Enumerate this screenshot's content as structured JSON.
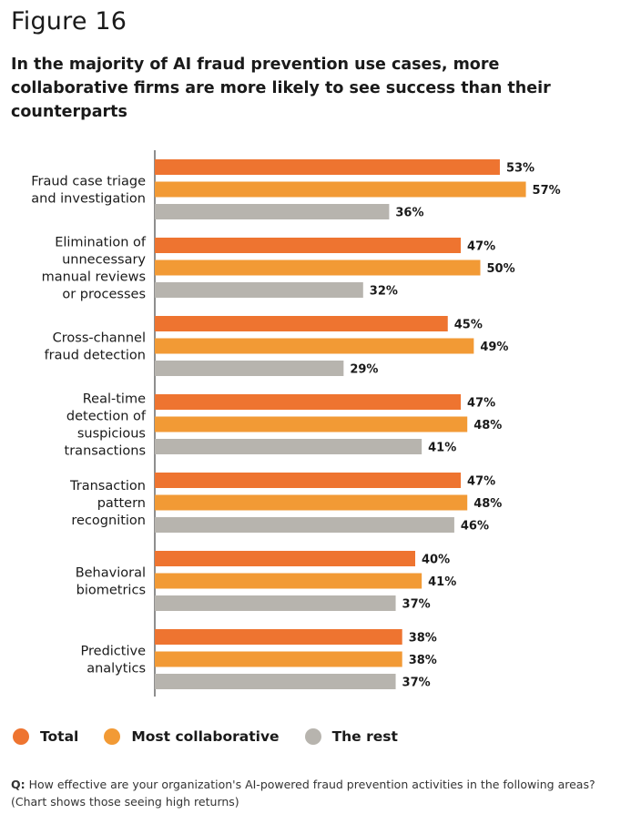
{
  "figure_label": "Figure 16",
  "headline": "In the majority of AI fraud prevention use cases, more collaborative firms are more likely to see success than their counterparts",
  "question_prefix": "Q:",
  "question_text": "How effective are your organization's AI-powered fraud prevention activities in the following areas? (Chart shows those seeing high returns)",
  "colors": {
    "total": "#ee7430",
    "most_collaborative": "#f29a35",
    "the_rest": "#b7b4ae",
    "axis": "#444444"
  },
  "legend": [
    {
      "label": "Total",
      "color_key": "total"
    },
    {
      "label": "Most collaborative",
      "color_key": "most_collaborative"
    },
    {
      "label": "The rest",
      "color_key": "the_rest"
    }
  ],
  "chart_data": {
    "type": "bar",
    "orientation": "horizontal",
    "categories": [
      [
        "Fraud case triage",
        "and investigation"
      ],
      [
        "Elimination of",
        "unnecessary",
        "manual reviews",
        "or processes"
      ],
      [
        "Cross-channel",
        "fraud detection"
      ],
      [
        "Real-time",
        "detection of",
        "suspicious",
        "transactions"
      ],
      [
        "Transaction",
        "pattern",
        "recognition"
      ],
      [
        "Behavioral",
        "biometrics"
      ],
      [
        "Predictive",
        "analytics"
      ]
    ],
    "series": [
      {
        "name": "Total",
        "color_key": "total",
        "values": [
          53,
          47,
          45,
          47,
          47,
          40,
          38
        ]
      },
      {
        "name": "Most collaborative",
        "color_key": "most_collaborative",
        "values": [
          57,
          50,
          49,
          48,
          48,
          41,
          38
        ]
      },
      {
        "name": "The rest",
        "color_key": "the_rest",
        "values": [
          36,
          32,
          29,
          41,
          46,
          37,
          37
        ]
      }
    ],
    "value_suffix": "%",
    "xlim": [
      0,
      60
    ],
    "grid": false,
    "legend_position": "bottom-left"
  }
}
